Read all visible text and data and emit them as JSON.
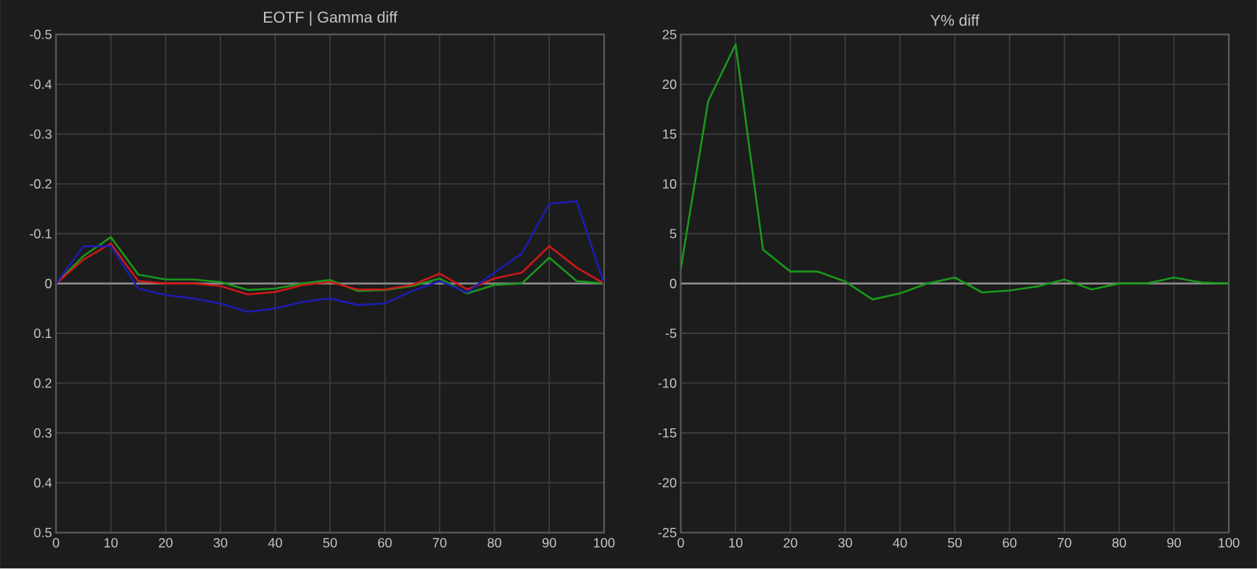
{
  "chart_data": [
    {
      "type": "line",
      "title": "EOTF | Gamma diff",
      "x": [
        0,
        5,
        10,
        15,
        20,
        25,
        30,
        35,
        40,
        45,
        50,
        55,
        60,
        65,
        70,
        75,
        80,
        85,
        90,
        95,
        100
      ],
      "series": [
        {
          "color": "#1a9a1a",
          "values": [
            0,
            -0.055,
            -0.093,
            -0.018,
            -0.008,
            -0.008,
            -0.003,
            0.013,
            0.01,
            0.0,
            -0.007,
            0.015,
            0.013,
            0.005,
            -0.01,
            0.02,
            0.003,
            0.0,
            -0.052,
            -0.005,
            0
          ]
        },
        {
          "color": "#d01818",
          "values": [
            0,
            -0.048,
            -0.08,
            -0.005,
            0,
            0,
            0.005,
            0.022,
            0.017,
            0.003,
            -0.003,
            0.012,
            0.012,
            0.003,
            -0.02,
            0.012,
            -0.01,
            -0.022,
            -0.075,
            -0.032,
            0
          ]
        },
        {
          "color": "#1c1cb4",
          "values": [
            0,
            -0.075,
            -0.075,
            0.01,
            0.023,
            0.03,
            0.04,
            0.057,
            0.05,
            0.037,
            0.03,
            0.043,
            0.04,
            0.015,
            -0.005,
            0.018,
            -0.022,
            -0.06,
            -0.16,
            -0.165,
            0
          ]
        }
      ],
      "xlim": [
        0,
        100
      ],
      "ylim": [
        0.5,
        -0.5
      ],
      "xticks": [
        0,
        10,
        20,
        30,
        40,
        50,
        60,
        70,
        80,
        90,
        100
      ],
      "yticks": [
        -0.5,
        -0.4,
        -0.3,
        -0.2,
        -0.1,
        0,
        0.1,
        0.2,
        0.3,
        0.4,
        0.5
      ],
      "grid": true,
      "ref_lines": [
        {
          "axis": "y",
          "value": 0,
          "color": "#8a8a8a"
        }
      ]
    },
    {
      "type": "line",
      "title": "Y% diff",
      "x": [
        0,
        5,
        10,
        15,
        20,
        25,
        30,
        35,
        40,
        45,
        50,
        55,
        60,
        65,
        70,
        75,
        80,
        85,
        90,
        95,
        100
      ],
      "series": [
        {
          "color": "#1a9a1a",
          "values": [
            1.5,
            18.3,
            24,
            3.4,
            1.2,
            1.2,
            0.2,
            -1.6,
            -1.0,
            0,
            0.6,
            -0.9,
            -0.7,
            -0.3,
            0.4,
            -0.6,
            0,
            0,
            0.6,
            0.1,
            0
          ]
        }
      ],
      "xlim": [
        0,
        100
      ],
      "ylim": [
        -25,
        25
      ],
      "xticks": [
        0,
        10,
        20,
        30,
        40,
        50,
        60,
        70,
        80,
        90,
        100
      ],
      "yticks": [
        -25,
        -20,
        -15,
        -10,
        -5,
        0,
        5,
        10,
        15,
        20,
        25
      ],
      "grid": true,
      "ref_lines": [
        {
          "axis": "y",
          "value": 0,
          "color": "#8a8a8a"
        }
      ]
    }
  ]
}
